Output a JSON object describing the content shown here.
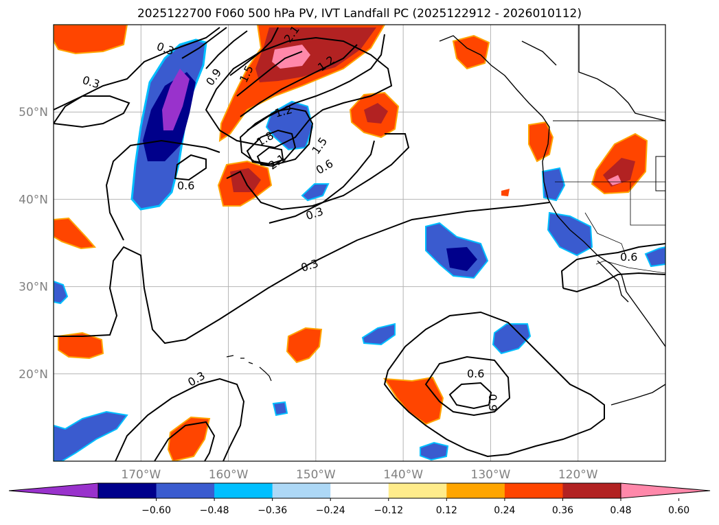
{
  "title": "2025122700 F060 500 hPa PV, IVT Landfall PC (2025122912 - 2026010112)",
  "map": {
    "projection": "PlateCarree",
    "lon_range": [
      -180,
      -110
    ],
    "lat_range": [
      10,
      60
    ],
    "lat_ticks": [
      {
        "value": 50,
        "label": "50°N"
      },
      {
        "value": 40,
        "label": "40°N"
      },
      {
        "value": 30,
        "label": "30°N"
      },
      {
        "value": 20,
        "label": "20°N"
      }
    ],
    "lon_ticks": [
      {
        "value": -170,
        "label": "170°W"
      },
      {
        "value": -160,
        "label": "160°W"
      },
      {
        "value": -150,
        "label": "150°W"
      },
      {
        "value": -140,
        "label": "140°W"
      },
      {
        "value": -130,
        "label": "130°W"
      },
      {
        "value": -120,
        "label": "120°W"
      }
    ],
    "gridlines": true,
    "contour_labels": [
      "0.3",
      "0.3",
      "0.3",
      "0.3",
      "0.3",
      "0.6",
      "0.6",
      "0.6",
      "0.6",
      "0.9",
      "0.9",
      "1.2",
      "1.2",
      "1.5",
      "1.5",
      "1.8",
      "2.1",
      "2.1"
    ]
  },
  "colorbar": {
    "ticks": [
      "−0.60",
      "−0.48",
      "−0.36",
      "−0.24",
      "−0.12",
      "0.12",
      "0.24",
      "0.36",
      "0.48",
      "0.60"
    ],
    "colors": [
      "#9932cc",
      "#00008b",
      "#3a5bcf",
      "#00bfff",
      "#add8f6",
      "#ffffff",
      "#ffec8b",
      "#ffa500",
      "#ff4500",
      "#b22222",
      "#ff88aa"
    ],
    "extend": "both"
  }
}
